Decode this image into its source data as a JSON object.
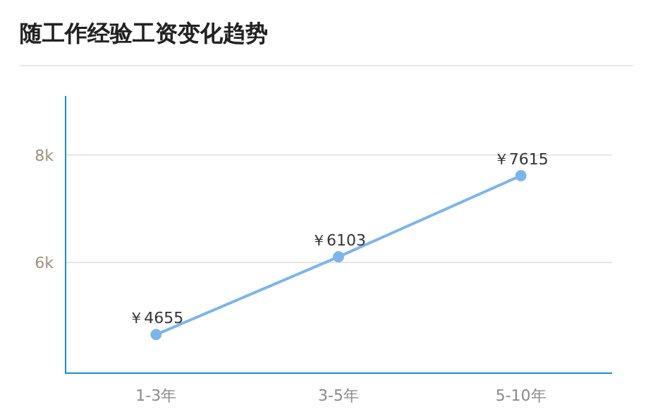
{
  "chart_data": {
    "type": "line",
    "title": "随工作经验工资变化趋势",
    "categories": [
      "1-3年",
      "3-5年",
      "5-10年"
    ],
    "series": [
      {
        "color": "#7cb5ec",
        "values": [
          4655,
          6103,
          7615
        ],
        "value_labels": [
          "￥4655",
          "￥6103",
          "￥7615"
        ]
      }
    ],
    "ylim": [
      3950,
      9100
    ],
    "yticks": [
      {
        "value": 6000,
        "label": "6k"
      },
      {
        "value": 8000,
        "label": "8k"
      }
    ],
    "grid": "y",
    "marker": "circle"
  }
}
